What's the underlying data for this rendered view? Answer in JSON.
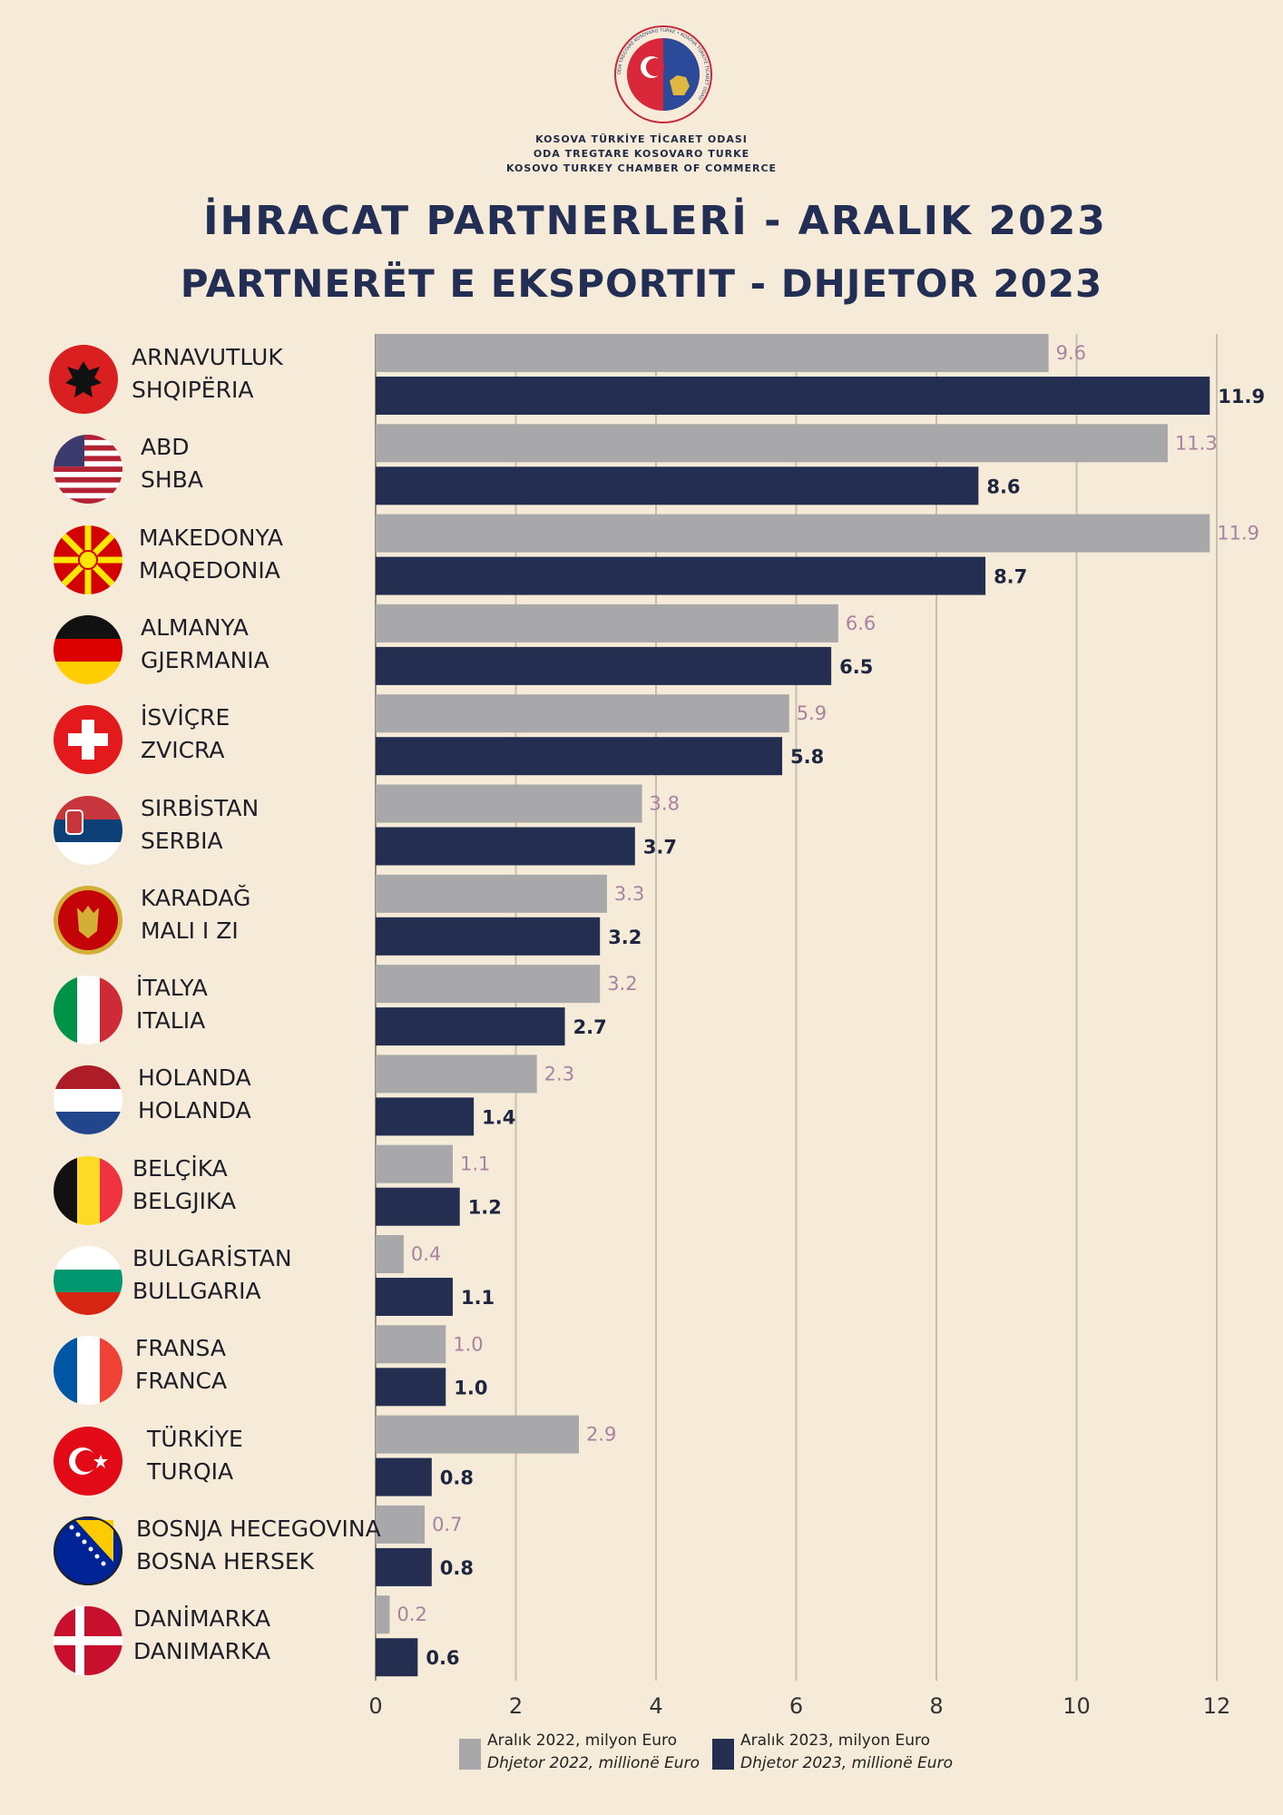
{
  "header": {
    "org_lines": [
      "KOSOVA TÜRKİYE TİCARET ODASI",
      "ODA TREGTARE KOSOVARO TURKE",
      "KOSOVO TURKEY CHAMBER OF COMMERCE"
    ],
    "logo_text": "ODA TREGTARE KOSOVARO TURKE • KOSOVA TÜRKİYE TİCARET ODASI",
    "title_line1": "İHRACAT PARTNERLERİ - ARALIK 2023",
    "title_line2": "PARTNERËT E EKSPORTIT - DHJETOR 2023"
  },
  "legend": {
    "series_2022_line1": "Aralık  2022, milyon Euro",
    "series_2022_line2": "Dhjetor  2022, millionë Euro",
    "series_2023_line1": "Aralık 2023, milyon Euro",
    "series_2023_line2": "Dhjetor 2023, millionë Euro"
  },
  "colors": {
    "bar_2022": "#a8a7a9",
    "bar_2023": "#232e50",
    "label_2022": "#a882a0",
    "label_2023": "#1e2540",
    "background": "#f5ebd8"
  },
  "chart_data": {
    "type": "bar",
    "orientation": "horizontal",
    "categories": [
      {
        "tr": "ARNAVUTLUK",
        "sq": "SHQIPËRIA",
        "flag": "albania-flag-icon"
      },
      {
        "tr": "ABD",
        "sq": "SHBA",
        "flag": "usa-flag-icon"
      },
      {
        "tr": "MAKEDONYA",
        "sq": "MAQEDONIA",
        "flag": "north-macedonia-flag-icon"
      },
      {
        "tr": "ALMANYA",
        "sq": "GJERMANIA",
        "flag": "germany-flag-icon"
      },
      {
        "tr": "İSVİÇRE",
        "sq": "ZVICRA",
        "flag": "switzerland-flag-icon"
      },
      {
        "tr": "SIRBİSTAN",
        "sq": "SERBIA",
        "flag": "serbia-flag-icon"
      },
      {
        "tr": "KARADAĞ",
        "sq": "MALI I ZI",
        "flag": "montenegro-flag-icon"
      },
      {
        "tr": "İTALYA",
        "sq": "ITALIA",
        "flag": "italy-flag-icon"
      },
      {
        "tr": "HOLANDA",
        "sq": "HOLANDA",
        "flag": "netherlands-flag-icon"
      },
      {
        "tr": "BELÇİKA",
        "sq": "BELGJIKA",
        "flag": "belgium-flag-icon"
      },
      {
        "tr": "BULGARİSTAN",
        "sq": "BULLGARIA",
        "flag": "bulgaria-flag-icon"
      },
      {
        "tr": "FRANSA",
        "sq": "FRANCA",
        "flag": "france-flag-icon"
      },
      {
        "tr": "TÜRKİYE",
        "sq": "TURQIA",
        "flag": "turkey-flag-icon"
      },
      {
        "tr": "BOSNJA HECEGOVINA",
        "sq": "BOSNA HERSEK",
        "flag": "bosnia-flag-icon"
      },
      {
        "tr": "DANİMARKA",
        "sq": "DANIMARKA",
        "flag": "denmark-flag-icon"
      }
    ],
    "series": [
      {
        "name": "Aralık  2022, milyon Euro",
        "values": [
          9.6,
          11.3,
          11.9,
          6.6,
          5.9,
          3.8,
          3.3,
          3.2,
          2.3,
          1.1,
          0.4,
          1.0,
          2.9,
          0.7,
          0.2
        ],
        "labels": [
          "9.6",
          "11.3",
          "11.9",
          "6.6",
          "5.9",
          "3.8",
          "3.3",
          "3.2",
          "2.3",
          "1.1",
          "0.4",
          "1.0",
          "2.9",
          "0.7",
          "0.2"
        ]
      },
      {
        "name": "Aralık 2023, milyon Euro",
        "values": [
          11.9,
          8.6,
          8.7,
          6.5,
          5.8,
          3.7,
          3.2,
          2.7,
          1.4,
          1.2,
          1.1,
          1.0,
          0.8,
          0.8,
          0.6
        ],
        "labels": [
          "11.9",
          "8.6",
          "8.7",
          "6.5",
          "5.8",
          "3.7",
          "3.2",
          "2.7",
          "1.4",
          "1.2",
          "1.1",
          "1.0",
          "0.8",
          "0.8",
          "0.6"
        ]
      }
    ],
    "xlim": [
      0,
      12
    ],
    "xticks": [
      0,
      2,
      4,
      6,
      8,
      10,
      12
    ],
    "grid": true
  }
}
